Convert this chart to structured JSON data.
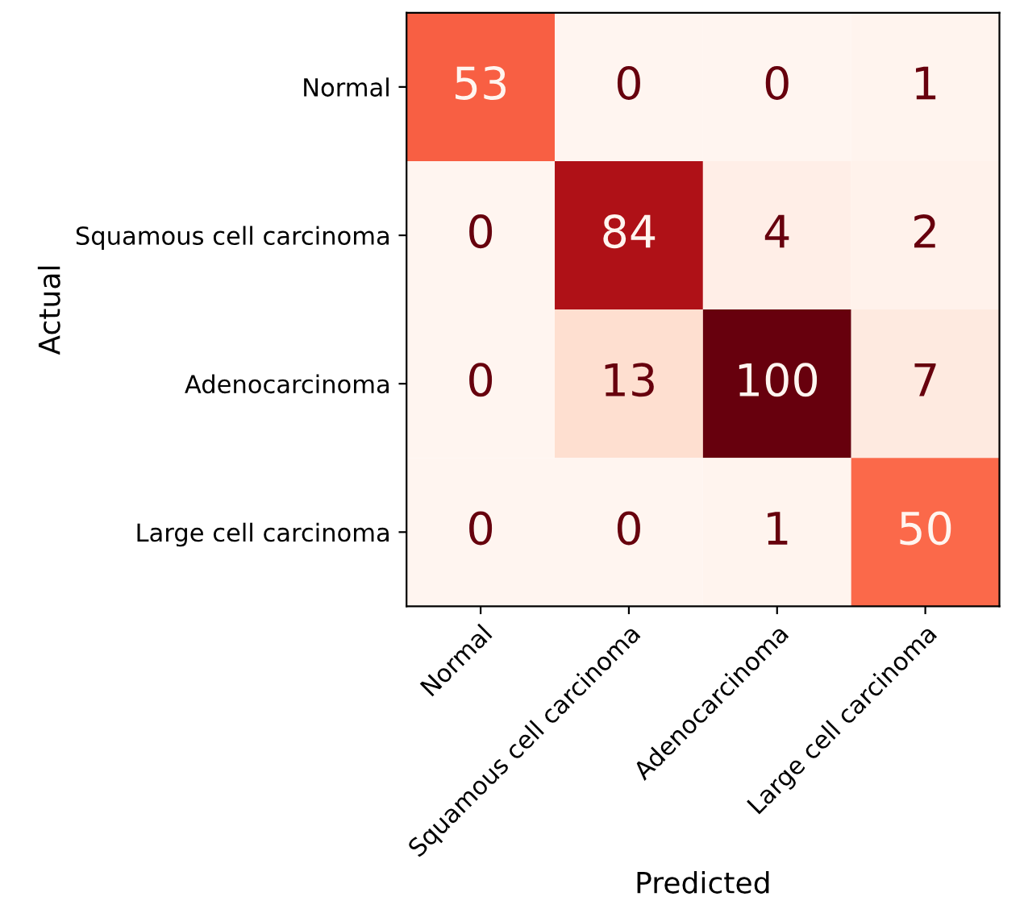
{
  "chart_data": {
    "type": "heatmap",
    "xlabel": "Predicted",
    "ylabel": "Actual",
    "categories": [
      "Normal",
      "Squamous cell carcinoma",
      "Adenocarcinoma",
      "Large cell carcinoma"
    ],
    "y_categories": [
      "Normal",
      "Squamous cell carcinoma",
      "Adenocarcinoma",
      "Large cell carcinoma"
    ],
    "cells": [
      [
        53,
        0,
        0,
        1
      ],
      [
        0,
        84,
        4,
        2
      ],
      [
        0,
        13,
        100,
        7
      ],
      [
        0,
        0,
        1,
        50
      ]
    ],
    "data_labels": true
  }
}
